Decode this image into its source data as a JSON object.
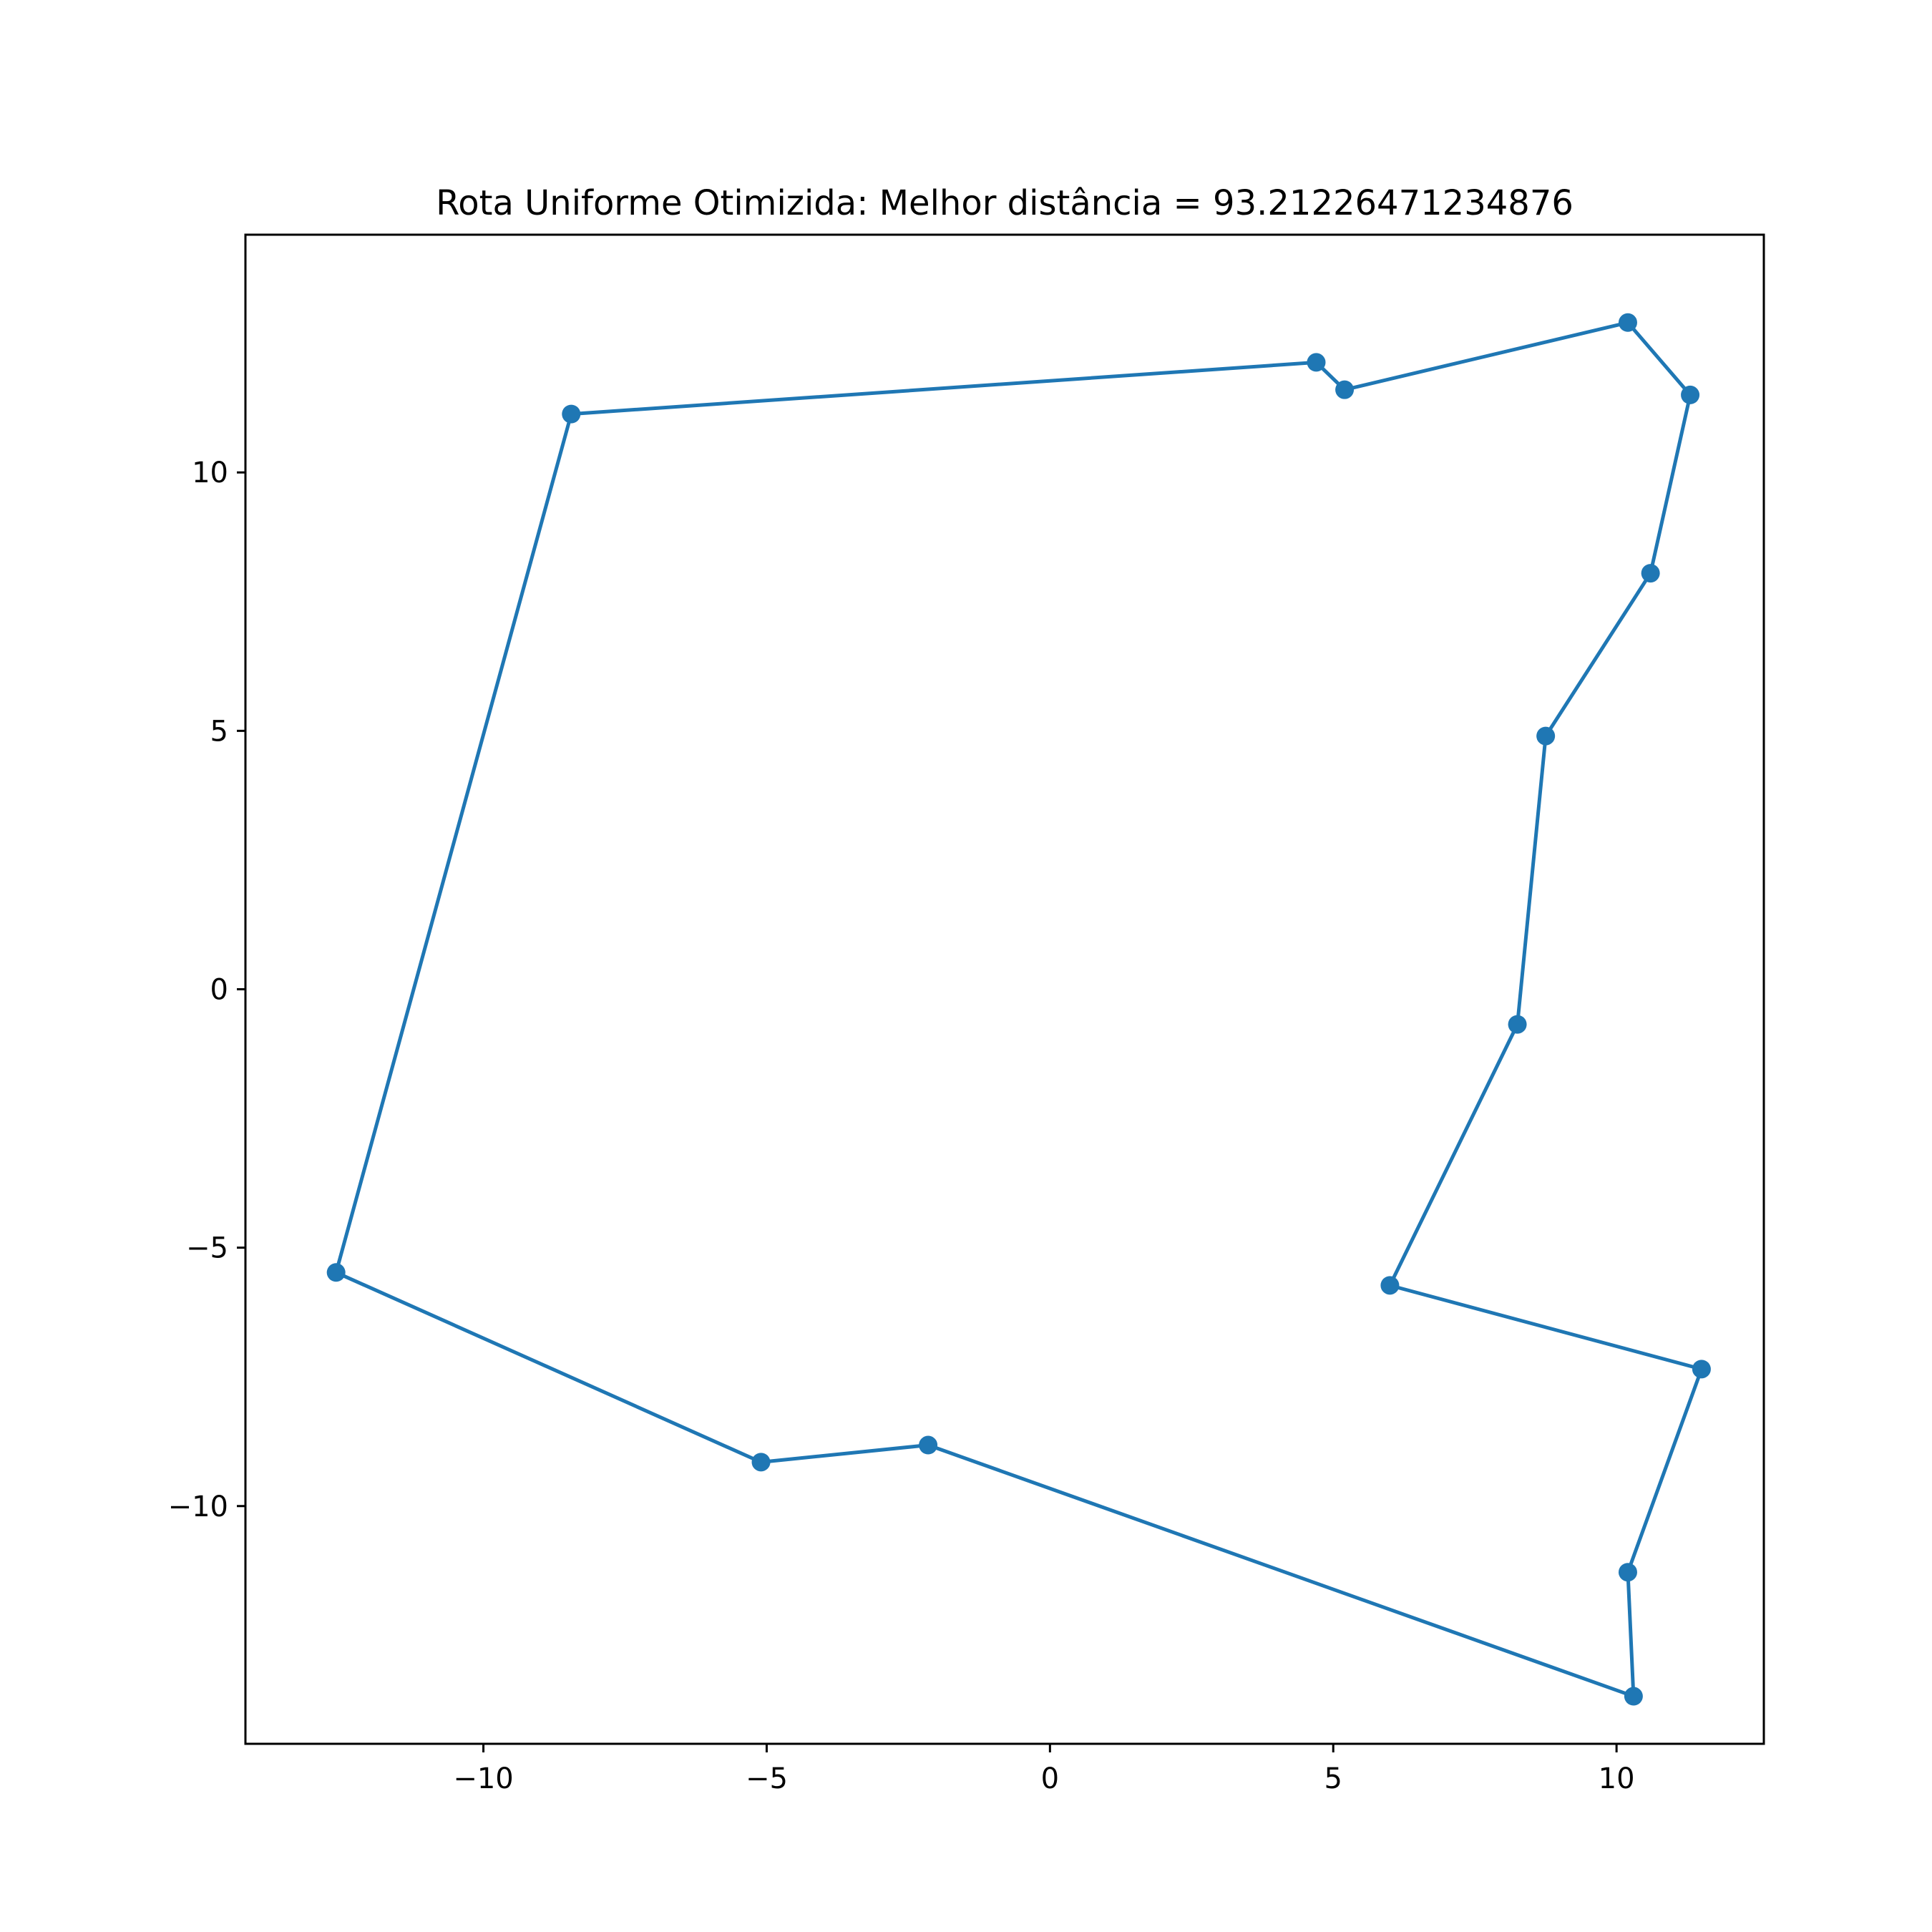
{
  "chart_data": {
    "type": "line",
    "title": "Rota Uniforme Otimizida: Melhor distância = 93.21226471234876",
    "xlabel": "",
    "ylabel": "",
    "xlim": [
      -14.2,
      12.6
    ],
    "ylim": [
      -14.6,
      14.6
    ],
    "xticks": [
      -10,
      -5,
      0,
      5,
      10
    ],
    "yticks": [
      -10,
      -5,
      0,
      5,
      10
    ],
    "xtick_labels": [
      "−10",
      "−5",
      "0",
      "5",
      "10"
    ],
    "ytick_labels": [
      "−10",
      "−5",
      "0",
      "5",
      "10"
    ],
    "grid": false,
    "series": [
      {
        "color": "#1f77b4",
        "marker": "circle",
        "closed": true,
        "points": [
          [
            -8.45,
            11.13
          ],
          [
            4.7,
            12.13
          ],
          [
            5.2,
            11.6
          ],
          [
            10.2,
            12.9
          ],
          [
            11.3,
            11.5
          ],
          [
            10.6,
            8.05
          ],
          [
            8.75,
            4.9
          ],
          [
            8.25,
            -0.68
          ],
          [
            6.0,
            -5.73
          ],
          [
            11.5,
            -7.35
          ],
          [
            10.2,
            -11.28
          ],
          [
            10.3,
            -13.68
          ],
          [
            -2.15,
            -8.82
          ],
          [
            -5.1,
            -9.15
          ],
          [
            -12.6,
            -5.48
          ]
        ]
      }
    ]
  }
}
